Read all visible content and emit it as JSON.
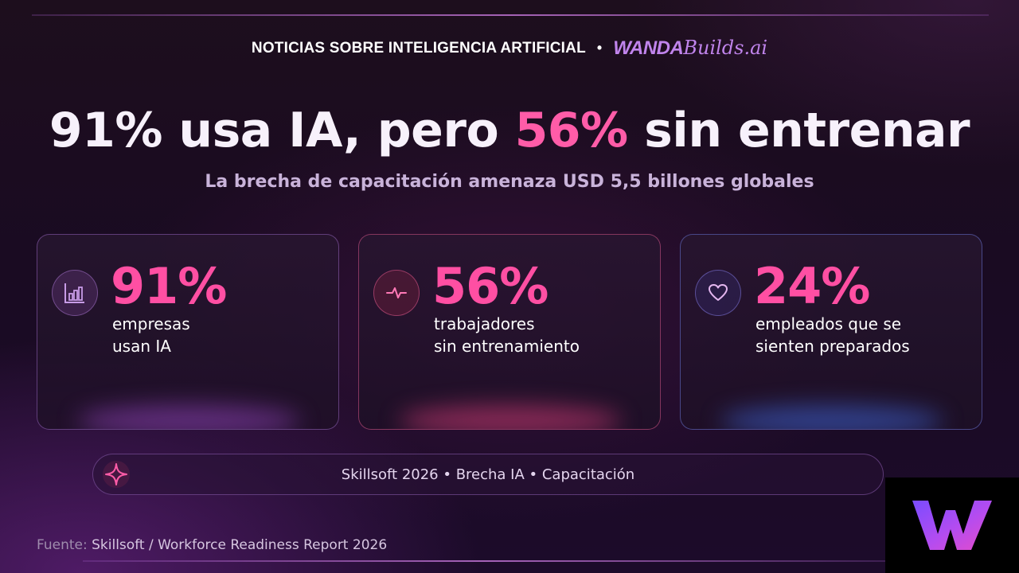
{
  "header": {
    "text": "NOTICIAS  SOBRE INTELIGENCIA ARTIFICIAL",
    "separator": "•",
    "brand_bold": "WANDA",
    "brand_script": "Builds.ai"
  },
  "headline": {
    "part1": "91% usa IA, pero ",
    "highlight": "56%",
    "part2": " sin entrenar"
  },
  "subtitle": "La brecha de capacitación amenaza USD 5,5 billones globales",
  "cards": [
    {
      "icon": "bar-chart-icon",
      "value": "91%",
      "line1": "empresas",
      "line2": "usan IA"
    },
    {
      "icon": "pulse-icon",
      "value": "56%",
      "line1": "trabajadores",
      "line2": "sin entrenamiento"
    },
    {
      "icon": "heart-icon",
      "value": "24%",
      "line1": "empleados que se",
      "line2": "sienten preparados"
    }
  ],
  "pill": {
    "icon": "sparkle-icon",
    "text": "Skillsoft 2026 • Brecha IA • Capacitación"
  },
  "source": {
    "label": "Fuente:",
    "text": "Skillsoft / Workforce Readiness Report 2026"
  },
  "logo": {
    "icon": "wanda-w-logo"
  },
  "colors": {
    "accent_pink": "#ff4fa3",
    "accent_purple": "#c084ec",
    "accent_blue": "#6a7cff"
  }
}
